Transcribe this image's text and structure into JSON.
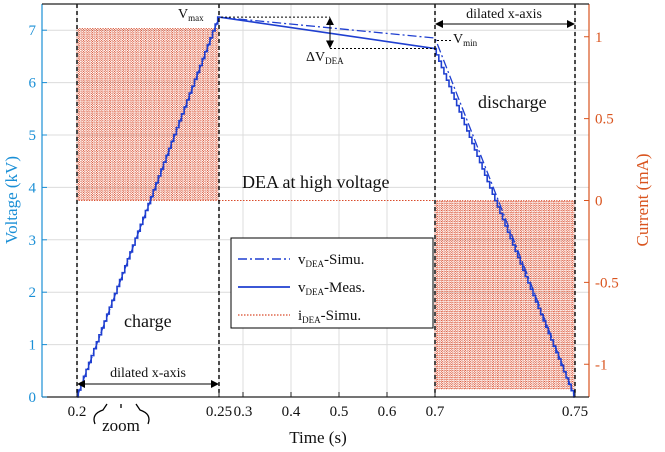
{
  "chart_data": {
    "type": "line",
    "xlabel": "Time (s)",
    "ylabel_left": "Voltage (kV)",
    "ylabel_right": "Current (mA)",
    "ylim_left": [
      0,
      7.5
    ],
    "ylim_right": [
      -1.2,
      1.2
    ],
    "x_ticks": [
      "0.2",
      "0.25",
      "0.3",
      "0.4",
      "0.5",
      "0.6",
      "0.7",
      "0.75"
    ],
    "y_left_ticks": [
      "0",
      "1",
      "2",
      "3",
      "4",
      "5",
      "6",
      "7"
    ],
    "y_right_ticks": [
      "-1",
      "-0.5",
      "0",
      "0.5",
      "1"
    ],
    "grid": true,
    "colors": {
      "voltage": "#1f3fd0",
      "current": "#d94b2b",
      "axis_left": "#1a8fd6",
      "axis_right": "#d9541e"
    },
    "series": [
      {
        "name": "v_DEA-Simu.",
        "axis": "left",
        "style": "dash-dot",
        "points": [
          [
            0.2,
            0
          ],
          [
            0.25,
            7.25
          ],
          [
            0.7,
            6.85
          ],
          [
            0.75,
            0
          ]
        ]
      },
      {
        "name": "v_DEA-Meas.",
        "axis": "left",
        "style": "solid",
        "points": [
          [
            0.2,
            0
          ],
          [
            0.25,
            7.25
          ],
          [
            0.7,
            6.65
          ],
          [
            0.75,
            0
          ]
        ]
      },
      {
        "name": "i_DEA-Simu.",
        "axis": "right",
        "style": "dotted",
        "segments": [
          {
            "x": [
              0.2,
              0.25
            ],
            "low": 0,
            "high": 1.05,
            "pulses": 55
          },
          {
            "x": [
              0.25,
              0.7
            ],
            "value": 0
          },
          {
            "x": [
              0.7,
              0.75
            ],
            "low": -1.15,
            "high": 0,
            "pulses": 55
          }
        ]
      }
    ],
    "legend": {
      "placement": "center",
      "entries": [
        {
          "main": "v",
          "sub": "DEA",
          "rest": "-Simu.",
          "style": "dash-dot"
        },
        {
          "main": "v",
          "sub": "DEA",
          "rest": "-Meas.",
          "style": "solid"
        },
        {
          "main": "i",
          "sub": "DEA",
          "rest": "-Simu.",
          "style": "dotted"
        }
      ]
    },
    "annotations": {
      "vmax": {
        "main": "V",
        "sub": "max"
      },
      "vmin": {
        "main": "V",
        "sub": "min"
      },
      "dv": {
        "main": "ΔV",
        "sub": "DEA"
      },
      "dilated_left": "dilated x-axis",
      "dilated_right": "dilated x-axis",
      "charge": "charge",
      "discharge": "discharge",
      "dea_high": "DEA at high voltage",
      "zoom": "zoom"
    }
  }
}
